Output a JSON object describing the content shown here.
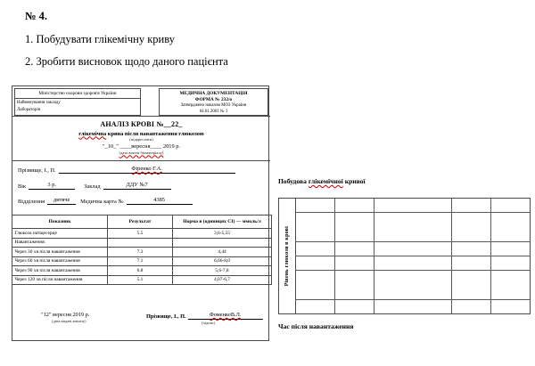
{
  "page": {
    "task_number": "№ 4.",
    "task1": "1. Побудувати глікемічну криву",
    "task2": "2. Зробити  висновок щодо даного пацієнта"
  },
  "form": {
    "header": {
      "ministry": "Міністерство охорони здоров'я України",
      "institution_label": "Найменування закладу",
      "lab_label": "Лабораторія",
      "doc_caption": "МЕДИЧНА ДОКУМЕНТАЦІЯ",
      "form_no": "ФОРМА № 232/о",
      "approved1": "Затверджено наказом МОЗ України",
      "approved2": "04.01.2001 № 1"
    },
    "title": {
      "analysis": "АНАЛІЗ КРОВІ №__22_",
      "subtitle_word": "глікемічна",
      "subtitle_rest": " крива після навантаження глюкозою",
      "note1": "(підкреслити)",
      "date_line": "\"_10_\" ____вересня____ 2019 р.",
      "note2": "(дата взяття біоматеріалу)"
    },
    "patient": {
      "name_label": "Прізвище, І., П.",
      "name_value": "Фіренко Г.А.",
      "age_label": "Вік",
      "age_value": "3 р.",
      "zaklad_label": "Заклад",
      "zaklad_value": "ДДУ №7",
      "dept_label": "Відділення",
      "dept_value": "дитяче",
      "card_label": "Медична карта №",
      "card_value": "4385"
    },
    "table": {
      "headers": [
        "Показник",
        "Результат",
        "Норма в (одиницях СІ) — ммоль/л"
      ],
      "rows": [
        {
          "indicator": "Глюкоза натщесерце",
          "result": "5.5",
          "norm": "3,6-5,55"
        },
        {
          "indicator": "Навантаження:",
          "result": "",
          "norm": ""
        },
        {
          "indicator": "Через 30 хв після навантаження",
          "result": "7.3",
          "norm": "4,44"
        },
        {
          "indicator": "Через 60 хв після навантаження",
          "result": "7.1",
          "norm": "6,66-8,0"
        },
        {
          "indicator": "Через 90 хв після навантаження",
          "result": "6.8",
          "norm": "5,6-7,8"
        },
        {
          "indicator": "Через 120 хв після навантаження",
          "result": "5.1",
          "norm": "4,07-6,7"
        }
      ]
    },
    "footer": {
      "date_value": "\"12\" вересня 2019 р.",
      "date_note": "(дата видачі аналізу)",
      "sign_label": "Прізвище, І., П.",
      "sign_value": "ФоменкоВ.Л.",
      "sign_note": "(підпис)"
    }
  },
  "plot": {
    "title_word1": "Побудова",
    "title_word2": "глікемічної",
    "title_word3": "кривої",
    "y_label": "Рівень глюкози в крові",
    "x_label": "Час після навантаження",
    "grid_rows": 8,
    "grid_cols": 6
  },
  "colors": {
    "spellcheck_red": "#d00000",
    "border_gray": "#4a4a4a",
    "background": "#ffffff"
  }
}
